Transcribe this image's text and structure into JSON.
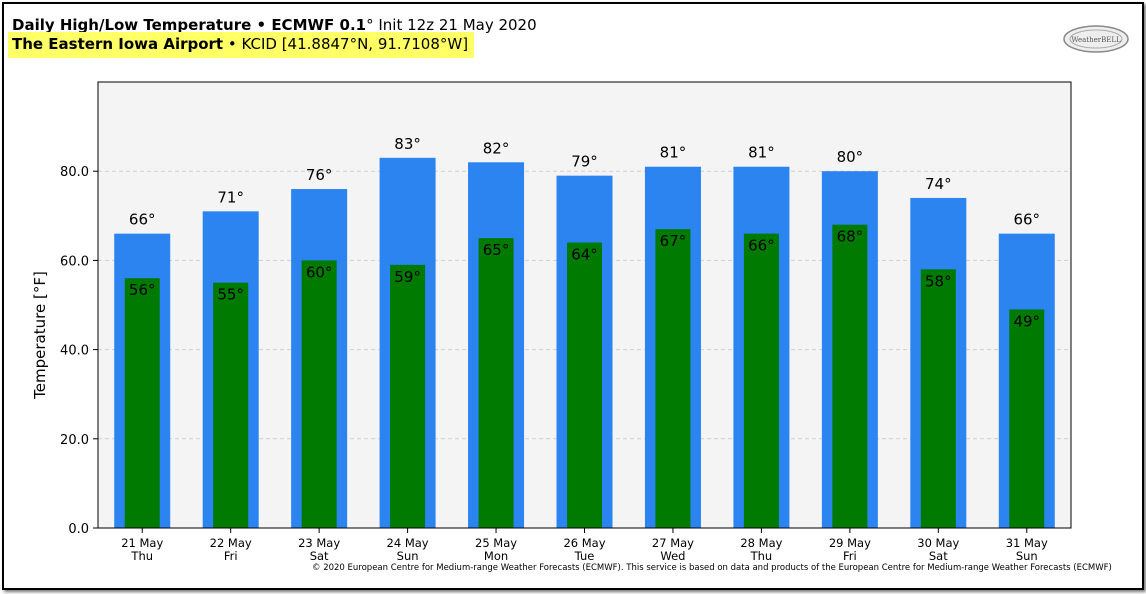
{
  "header": {
    "title_bold": "Daily High/Low Temperature • ECMWF 0.1",
    "title_degree": "°",
    "title_init": " Init 12z 21 May 2020",
    "location_bold": "The Eastern Iowa Airport",
    "location_rest": " • KCID [41.8847°N, 91.7108°W]"
  },
  "logo": {
    "icon": "weatherbell-logo",
    "text": "WeatherBELL"
  },
  "copyright": "© 2020 European Centre for Medium-range Weather Forecasts (ECMWF). This service is based on data and products of the European Centre for Medium-range Weather Forecasts (ECMWF)",
  "colors": {
    "high": "#2b84f0",
    "low": "#007a00",
    "plot_bg": "#f4f4f4"
  },
  "chart_data": {
    "type": "bar",
    "ylabel": "Temperature [°F]",
    "ylim": [
      0,
      100
    ],
    "yticks": [
      0,
      20,
      40,
      60,
      80
    ],
    "ytick_labels": [
      "0.0",
      "20.0",
      "40.0",
      "60.0",
      "80.0"
    ],
    "grid": true,
    "categories": [
      "21 May",
      "22 May",
      "23 May",
      "24 May",
      "25 May",
      "26 May",
      "27 May",
      "28 May",
      "29 May",
      "30 May",
      "31 May"
    ],
    "weekdays": [
      "Thu",
      "Fri",
      "Sat",
      "Sun",
      "Mon",
      "Tue",
      "Wed",
      "Thu",
      "Fri",
      "Sat",
      "Sun"
    ],
    "series": [
      {
        "name": "High",
        "values": [
          66,
          71,
          76,
          83,
          82,
          79,
          81,
          81,
          80,
          74,
          66
        ],
        "labels": [
          "66°",
          "71°",
          "76°",
          "83°",
          "82°",
          "79°",
          "81°",
          "81°",
          "80°",
          "74°",
          "66°"
        ]
      },
      {
        "name": "Low",
        "values": [
          56,
          55,
          60,
          59,
          65,
          64,
          67,
          66,
          68,
          58,
          49
        ],
        "labels": [
          "56°",
          "55°",
          "60°",
          "59°",
          "65°",
          "64°",
          "67°",
          "66°",
          "68°",
          "58°",
          "49°"
        ]
      }
    ]
  }
}
